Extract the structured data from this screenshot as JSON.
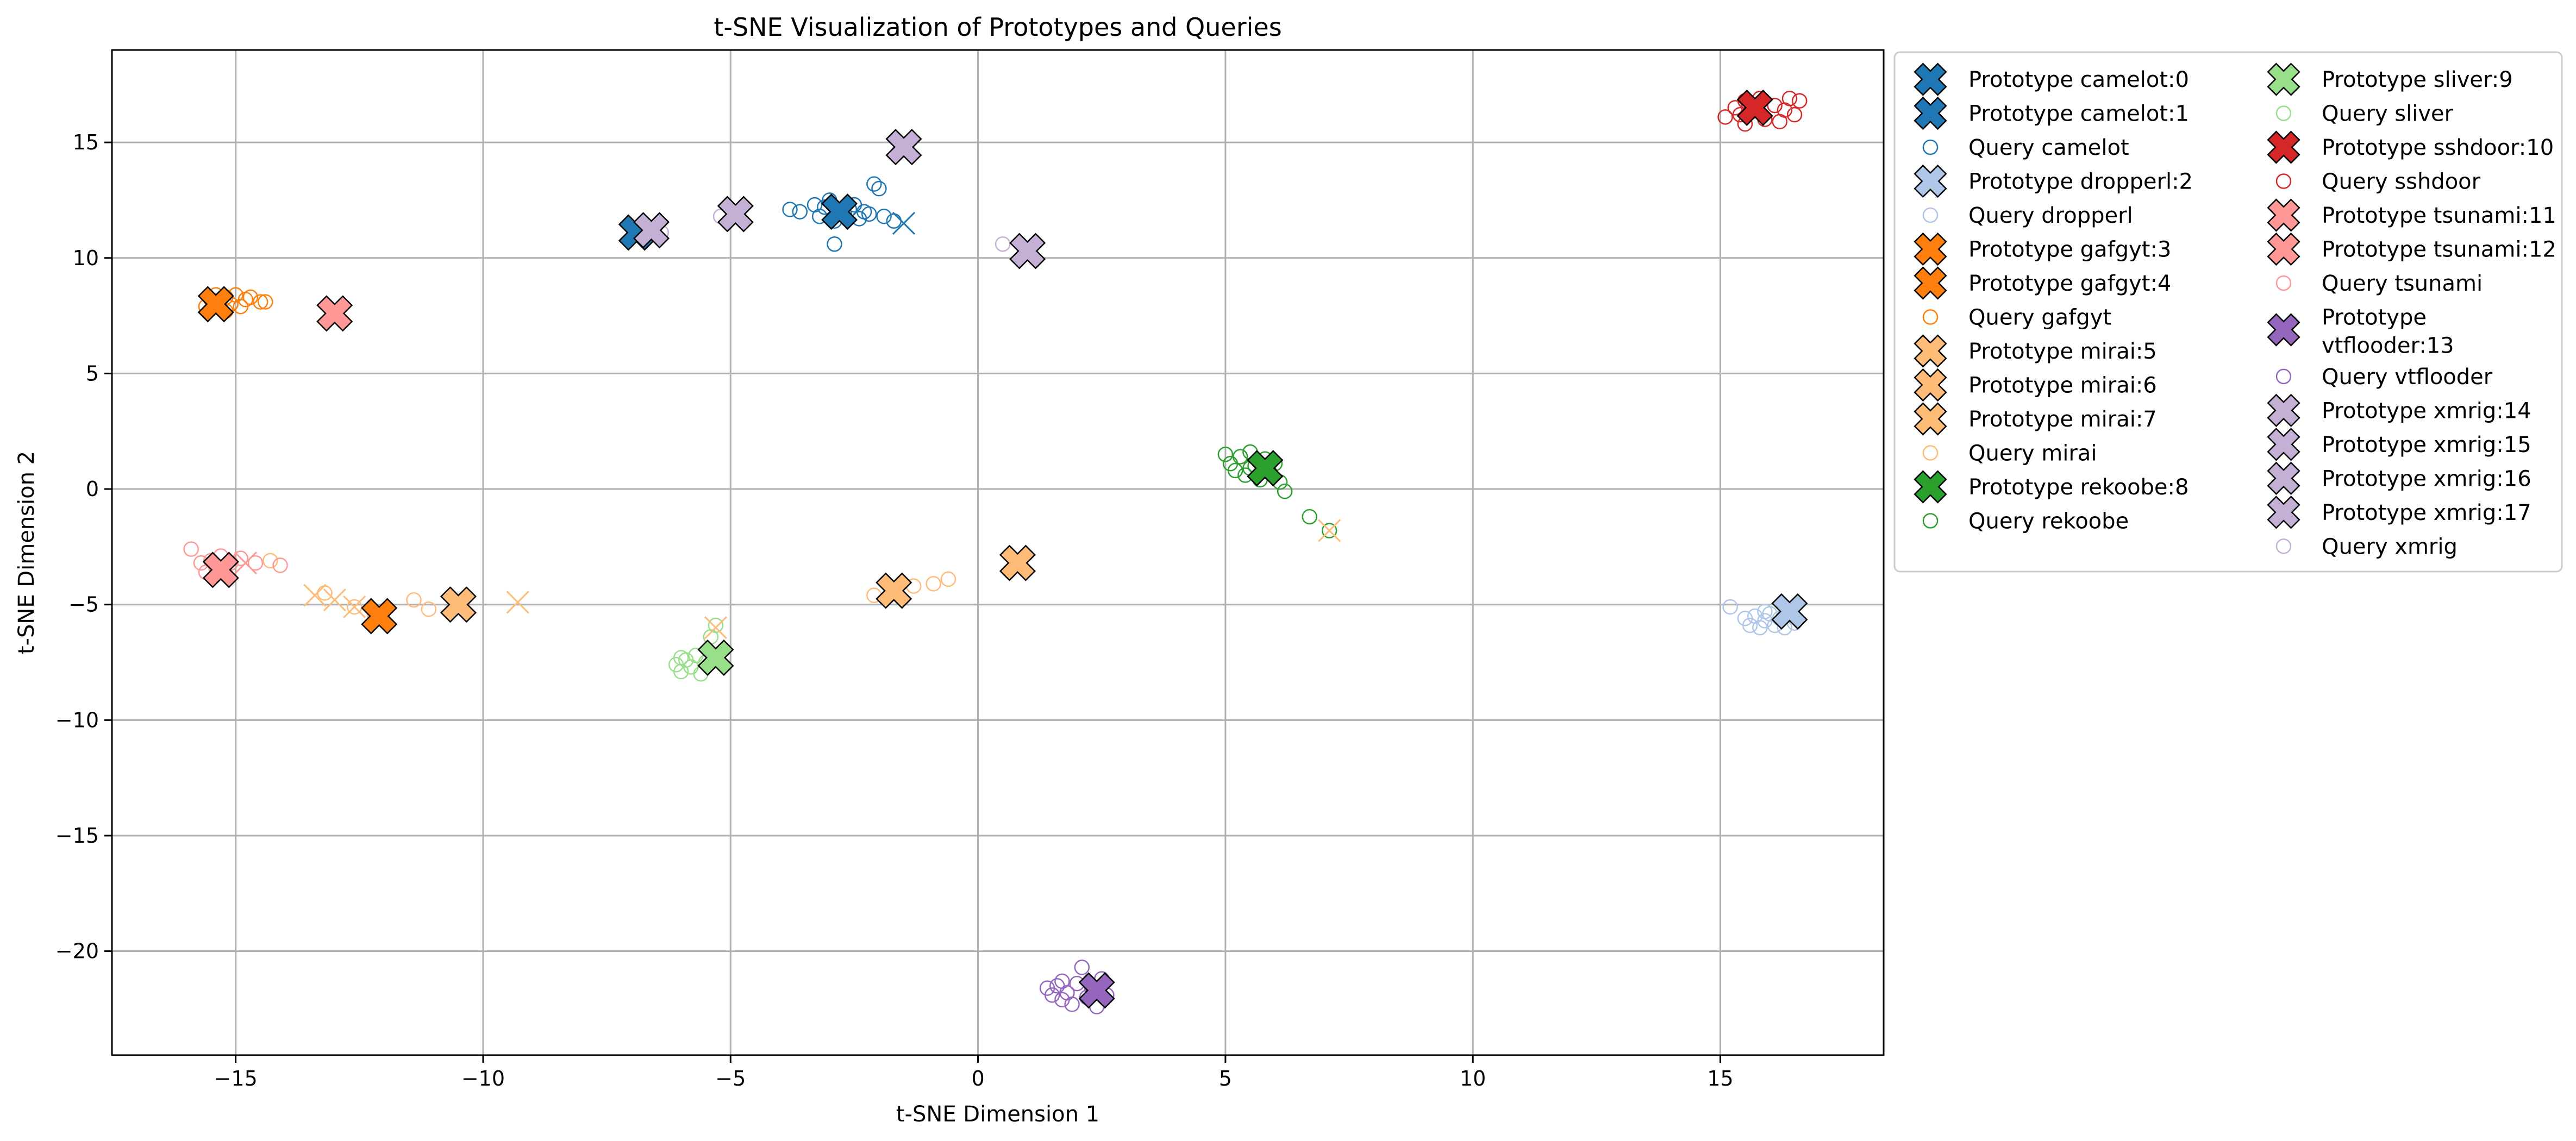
{
  "chart_data": {
    "type": "scatter",
    "title": "t-SNE Visualization of Prototypes and Queries",
    "xlabel": "t-SNE Dimension 1",
    "ylabel": "t-SNE Dimension 2",
    "xlim": [
      -17.5,
      18.3
    ],
    "ylim": [
      -24.5,
      19.0
    ],
    "xticks": [
      -15,
      -10,
      -5,
      0,
      5,
      10,
      15
    ],
    "yticks": [
      -20,
      -15,
      -10,
      -5,
      0,
      5,
      10,
      15
    ],
    "xtick_labels": [
      "−15",
      "−10",
      "−5",
      "0",
      "5",
      "10",
      "15"
    ],
    "ytick_labels": [
      "−20",
      "−15",
      "−10",
      "−5",
      "0",
      "5",
      "10",
      "15"
    ],
    "grid": true,
    "legend_placement": "outside-right",
    "legend": [
      {
        "label": "Prototype camelot:0",
        "kind": "prototype",
        "color": "#1f77b4"
      },
      {
        "label": "Prototype camelot:1",
        "kind": "prototype",
        "color": "#1f77b4"
      },
      {
        "label": "Query camelot",
        "kind": "query",
        "color": "#1f77b4"
      },
      {
        "label": "Prototype dropperl:2",
        "kind": "prototype",
        "color": "#aec7e8"
      },
      {
        "label": "Query dropperl",
        "kind": "query",
        "color": "#aec7e8"
      },
      {
        "label": "Prototype gafgyt:3",
        "kind": "prototype",
        "color": "#ff7f0e"
      },
      {
        "label": "Prototype gafgyt:4",
        "kind": "prototype",
        "color": "#ff7f0e"
      },
      {
        "label": "Query gafgyt",
        "kind": "query",
        "color": "#ff7f0e"
      },
      {
        "label": "Prototype mirai:5",
        "kind": "prototype",
        "color": "#ffbb78"
      },
      {
        "label": "Prototype mirai:6",
        "kind": "prototype",
        "color": "#ffbb78"
      },
      {
        "label": "Prototype mirai:7",
        "kind": "prototype",
        "color": "#ffbb78"
      },
      {
        "label": "Query mirai",
        "kind": "query",
        "color": "#ffbb78"
      },
      {
        "label": "Prototype rekoobe:8",
        "kind": "prototype",
        "color": "#2ca02c"
      },
      {
        "label": "Query rekoobe",
        "kind": "query",
        "color": "#2ca02c"
      },
      {
        "label": "Prototype sliver:9",
        "kind": "prototype",
        "color": "#98df8a"
      },
      {
        "label": "Query sliver",
        "kind": "query",
        "color": "#98df8a"
      },
      {
        "label": "Prototype sshdoor:10",
        "kind": "prototype",
        "color": "#d62728"
      },
      {
        "label": "Query sshdoor",
        "kind": "query",
        "color": "#d62728"
      },
      {
        "label": "Prototype tsunami:11",
        "kind": "prototype",
        "color": "#ff9896"
      },
      {
        "label": "Prototype tsunami:12",
        "kind": "prototype",
        "color": "#ff9896"
      },
      {
        "label": "Query tsunami",
        "kind": "query",
        "color": "#ff9896"
      },
      {
        "label": "Prototype vtflooder:13",
        "kind": "prototype",
        "color": "#9467bd",
        "lines": [
          "Prototype",
          "vtflooder:13"
        ]
      },
      {
        "label": "Query vtflooder",
        "kind": "query",
        "color": "#9467bd"
      },
      {
        "label": "Prototype xmrig:14",
        "kind": "prototype",
        "color": "#c5b0d5"
      },
      {
        "label": "Prototype xmrig:15",
        "kind": "prototype",
        "color": "#c5b0d5"
      },
      {
        "label": "Prototype xmrig:16",
        "kind": "prototype",
        "color": "#c5b0d5"
      },
      {
        "label": "Prototype xmrig:17",
        "kind": "prototype",
        "color": "#c5b0d5"
      },
      {
        "label": "Query xmrig",
        "kind": "query",
        "color": "#c5b0d5"
      }
    ],
    "prototypes": [
      {
        "name": "camelot:0",
        "color": "#1f77b4",
        "x": -6.9,
        "y": 11.1
      },
      {
        "name": "camelot:1",
        "color": "#1f77b4",
        "x": -2.8,
        "y": 12.0
      },
      {
        "name": "dropperl:2",
        "color": "#aec7e8",
        "x": 16.4,
        "y": -5.3
      },
      {
        "name": "gafgyt:3",
        "color": "#ff7f0e",
        "x": -15.4,
        "y": 8.0
      },
      {
        "name": "gafgyt:4",
        "color": "#ff7f0e",
        "x": -12.1,
        "y": -5.5
      },
      {
        "name": "mirai:5",
        "color": "#ffbb78",
        "x": -10.5,
        "y": -5.0
      },
      {
        "name": "mirai:6",
        "color": "#ffbb78",
        "x": -1.7,
        "y": -4.4
      },
      {
        "name": "mirai:7",
        "color": "#ffbb78",
        "x": 0.8,
        "y": -3.2
      },
      {
        "name": "rekoobe:8",
        "color": "#2ca02c",
        "x": 5.8,
        "y": 0.9
      },
      {
        "name": "sliver:9",
        "color": "#98df8a",
        "x": -5.3,
        "y": -7.3
      },
      {
        "name": "sshdoor:10",
        "color": "#d62728",
        "x": 15.7,
        "y": 16.5
      },
      {
        "name": "tsunami:11",
        "color": "#ff9896",
        "x": -15.3,
        "y": -3.5
      },
      {
        "name": "tsunami:12",
        "color": "#ff9896",
        "x": -13.0,
        "y": 7.6
      },
      {
        "name": "vtflooder:13",
        "color": "#9467bd",
        "x": 2.4,
        "y": -21.7
      },
      {
        "name": "xmrig:14",
        "color": "#c5b0d5",
        "x": -6.6,
        "y": 11.2
      },
      {
        "name": "xmrig:15",
        "color": "#c5b0d5",
        "x": -1.5,
        "y": 14.8
      },
      {
        "name": "xmrig:16",
        "color": "#c5b0d5",
        "x": -4.9,
        "y": 11.9
      },
      {
        "name": "xmrig:17",
        "color": "#c5b0d5",
        "x": 1.0,
        "y": 10.3
      }
    ],
    "queries": [
      {
        "name": "camelot",
        "color": "#1f77b4",
        "points": [
          [
            -3.8,
            12.1
          ],
          [
            -3.6,
            12.0
          ],
          [
            -3.2,
            11.8
          ],
          [
            -3.1,
            12.2
          ],
          [
            -2.9,
            11.6
          ],
          [
            -2.7,
            11.9
          ],
          [
            -2.5,
            12.3
          ],
          [
            -2.4,
            11.7
          ],
          [
            -2.2,
            11.9
          ],
          [
            -2.1,
            13.2
          ],
          [
            -2.0,
            13.0
          ],
          [
            -1.9,
            11.8
          ],
          [
            -1.7,
            11.6
          ],
          [
            -3.0,
            12.5
          ],
          [
            -2.6,
            12.1
          ],
          [
            -2.3,
            12.0
          ],
          [
            -2.9,
            10.6
          ],
          [
            -3.3,
            12.3
          ]
        ]
      },
      {
        "name": "dropperl",
        "color": "#aec7e8",
        "points": [
          [
            15.2,
            -5.1
          ],
          [
            15.5,
            -5.6
          ],
          [
            15.6,
            -5.9
          ],
          [
            15.7,
            -5.5
          ],
          [
            15.8,
            -6.0
          ],
          [
            15.9,
            -5.7
          ],
          [
            16.0,
            -5.4
          ],
          [
            16.1,
            -5.9
          ],
          [
            16.2,
            -5.6
          ],
          [
            16.3,
            -6.0
          ],
          [
            16.5,
            -5.8
          ],
          [
            15.9,
            -5.3
          ]
        ]
      },
      {
        "name": "gafgyt",
        "color": "#ff7f0e",
        "points": [
          [
            -15.5,
            8.2
          ],
          [
            -15.4,
            8.4
          ],
          [
            -15.3,
            7.8
          ],
          [
            -15.2,
            8.3
          ],
          [
            -15.1,
            8.0
          ],
          [
            -15.0,
            8.4
          ],
          [
            -14.9,
            7.9
          ],
          [
            -14.8,
            8.2
          ],
          [
            -14.7,
            8.3
          ],
          [
            -14.5,
            8.1
          ],
          [
            -14.4,
            8.1
          ],
          [
            -15.6,
            7.9
          ],
          [
            -15.2,
            7.7
          ]
        ]
      },
      {
        "name": "mirai",
        "color": "#ffbb78",
        "points": [
          [
            -14.3,
            -3.1
          ],
          [
            -13.2,
            -4.5
          ],
          [
            -12.6,
            -5.1
          ],
          [
            -11.4,
            -4.8
          ],
          [
            -11.1,
            -5.2
          ],
          [
            -2.1,
            -4.6
          ],
          [
            -1.3,
            -4.2
          ],
          [
            -0.9,
            -4.1
          ],
          [
            -0.6,
            -3.9
          ],
          [
            -12.2,
            -5.4
          ]
        ]
      },
      {
        "name": "rekoobe",
        "color": "#2ca02c",
        "points": [
          [
            5.0,
            1.5
          ],
          [
            5.1,
            1.1
          ],
          [
            5.2,
            0.8
          ],
          [
            5.3,
            1.4
          ],
          [
            5.4,
            0.6
          ],
          [
            5.5,
            1.6
          ],
          [
            5.6,
            1.0
          ],
          [
            5.7,
            0.4
          ],
          [
            5.8,
            1.3
          ],
          [
            5.9,
            0.7
          ],
          [
            6.0,
            1.1
          ],
          [
            6.1,
            0.3
          ],
          [
            6.2,
            -0.1
          ],
          [
            6.7,
            -1.2
          ],
          [
            7.1,
            -1.8
          ],
          [
            5.5,
            0.9
          ]
        ]
      },
      {
        "name": "sliver",
        "color": "#98df8a",
        "points": [
          [
            -6.1,
            -7.6
          ],
          [
            -6.0,
            -7.9
          ],
          [
            -5.9,
            -7.4
          ],
          [
            -5.8,
            -7.7
          ],
          [
            -5.7,
            -7.2
          ],
          [
            -5.6,
            -8.0
          ],
          [
            -5.5,
            -7.5
          ],
          [
            -5.4,
            -6.4
          ],
          [
            -5.3,
            -5.9
          ],
          [
            -6.0,
            -7.3
          ]
        ]
      },
      {
        "name": "sshdoor",
        "color": "#d62728",
        "points": [
          [
            15.1,
            16.1
          ],
          [
            15.3,
            16.5
          ],
          [
            15.5,
            16.8
          ],
          [
            15.5,
            15.8
          ],
          [
            15.6,
            16.3
          ],
          [
            15.8,
            16.9
          ],
          [
            15.9,
            16.0
          ],
          [
            16.1,
            16.6
          ],
          [
            16.2,
            15.9
          ],
          [
            16.3,
            16.4
          ],
          [
            16.4,
            16.9
          ],
          [
            16.5,
            16.2
          ],
          [
            16.6,
            16.8
          ],
          [
            15.4,
            16.2
          ],
          [
            15.7,
            16.6
          ]
        ]
      },
      {
        "name": "tsunami",
        "color": "#ff9896",
        "points": [
          [
            -15.9,
            -2.6
          ],
          [
            -15.7,
            -3.2
          ],
          [
            -15.6,
            -3.6
          ],
          [
            -15.5,
            -3.1
          ],
          [
            -15.4,
            -3.4
          ],
          [
            -15.3,
            -2.9
          ],
          [
            -15.1,
            -3.2
          ],
          [
            -14.9,
            -3.0
          ],
          [
            -14.6,
            -3.2
          ],
          [
            -14.1,
            -3.3
          ],
          [
            -15.2,
            -3.7
          ]
        ]
      },
      {
        "name": "vtflooder",
        "color": "#9467bd",
        "points": [
          [
            1.4,
            -21.6
          ],
          [
            1.5,
            -21.9
          ],
          [
            1.6,
            -21.5
          ],
          [
            1.7,
            -22.1
          ],
          [
            1.8,
            -21.8
          ],
          [
            1.9,
            -22.3
          ],
          [
            2.0,
            -21.4
          ],
          [
            2.1,
            -20.7
          ],
          [
            2.2,
            -22.0
          ],
          [
            2.3,
            -21.6
          ],
          [
            2.4,
            -22.4
          ],
          [
            2.6,
            -21.9
          ],
          [
            1.7,
            -21.3
          ],
          [
            2.5,
            -21.2
          ]
        ]
      },
      {
        "name": "xmrig",
        "color": "#c5b0d5",
        "points": [
          [
            -5.2,
            11.8
          ],
          [
            0.5,
            10.6
          ],
          [
            -6.4,
            11.1
          ],
          [
            -1.6,
            14.6
          ]
        ]
      }
    ],
    "cross_markers": [
      {
        "color": "#1f77b4",
        "x": -1.5,
        "y": 11.5
      },
      {
        "color": "#ffbb78",
        "x": -13.4,
        "y": -4.6
      },
      {
        "color": "#ffbb78",
        "x": -13.0,
        "y": -4.8
      },
      {
        "color": "#ffbb78",
        "x": -12.6,
        "y": -5.1
      },
      {
        "color": "#ffbb78",
        "x": -9.3,
        "y": -4.9
      },
      {
        "color": "#ffbb78",
        "x": -5.3,
        "y": -6.0
      },
      {
        "color": "#ffbb78",
        "x": 7.1,
        "y": -1.8
      },
      {
        "color": "#ff9896",
        "x": -14.8,
        "y": -3.2
      }
    ]
  }
}
